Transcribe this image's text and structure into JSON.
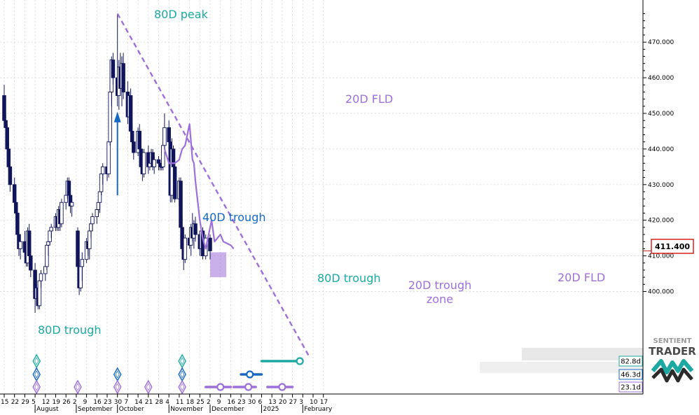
{
  "colors": {
    "candle": "#10145a",
    "teal": "#1ba9a1",
    "blue": "#1668c4",
    "purple": "#9d6fdb",
    "grid": "#cfcfcf",
    "price_box": "#d62020"
  },
  "chart_data": {
    "type": "candlestick",
    "ylim": [
      390,
      478
    ],
    "yticks": [
      400,
      410,
      420,
      430,
      440,
      450,
      460,
      470
    ],
    "ytick_labels": [
      "400.000",
      "410.000",
      "420.000",
      "430.000",
      "440.000",
      "450.000",
      "460.000",
      "470.000"
    ],
    "current_price": "411.400",
    "x_start": "2024-07-15",
    "day_labels": [
      "15",
      "22",
      "29",
      "5",
      "12",
      "19",
      "26",
      "2",
      "9",
      "16",
      "23",
      "30",
      "7",
      "14",
      "21",
      "28",
      "4",
      "11",
      "18",
      "25",
      "2",
      "9",
      "16",
      "23",
      "30",
      "6",
      "13",
      "20",
      "27",
      "3",
      "10",
      "17"
    ],
    "month_labels": [
      {
        "date": "2024-08-05",
        "text": "August"
      },
      {
        "date": "2024-09-02",
        "text": "September"
      },
      {
        "date": "2024-09-30",
        "text": "October"
      },
      {
        "date": "2024-11-04",
        "text": "November"
      },
      {
        "date": "2024-12-02",
        "text": "December"
      },
      {
        "date": "2025-01-06",
        "text": "2025"
      },
      {
        "date": "2025-02-03",
        "text": "February"
      }
    ],
    "candles": [
      [
        "2024-07-15",
        455,
        458,
        447,
        448
      ],
      [
        "2024-07-16",
        448,
        450,
        443,
        446
      ],
      [
        "2024-07-17",
        446,
        447,
        438,
        440
      ],
      [
        "2024-07-18",
        440,
        442,
        434,
        435
      ],
      [
        "2024-07-19",
        435,
        437,
        428,
        430
      ],
      [
        "2024-07-22",
        430,
        432,
        424,
        425
      ],
      [
        "2024-07-23",
        425,
        427,
        420,
        422
      ],
      [
        "2024-07-24",
        422,
        423,
        414,
        416
      ],
      [
        "2024-07-25",
        416,
        418,
        410,
        412
      ],
      [
        "2024-07-26",
        412,
        416,
        409,
        414
      ],
      [
        "2024-07-29",
        414,
        417,
        410,
        411
      ],
      [
        "2024-07-30",
        411,
        413,
        407,
        408
      ],
      [
        "2024-07-31",
        408,
        418,
        407,
        417
      ],
      [
        "2024-08-01",
        417,
        419,
        408,
        410
      ],
      [
        "2024-08-02",
        410,
        412,
        404,
        406
      ],
      [
        "2024-08-05",
        406,
        408,
        394,
        398
      ],
      [
        "2024-08-06",
        398,
        402,
        396,
        401
      ],
      [
        "2024-08-07",
        401,
        403,
        395,
        396
      ],
      [
        "2024-08-08",
        396,
        404,
        395,
        403
      ],
      [
        "2024-08-09",
        403,
        406,
        401,
        405
      ],
      [
        "2024-08-12",
        405,
        408,
        403,
        407
      ],
      [
        "2024-08-13",
        407,
        414,
        406,
        413
      ],
      [
        "2024-08-14",
        413,
        415,
        410,
        414
      ],
      [
        "2024-08-15",
        414,
        418,
        413,
        417
      ],
      [
        "2024-08-16",
        417,
        419,
        415,
        418
      ],
      [
        "2024-08-19",
        418,
        422,
        417,
        421
      ],
      [
        "2024-08-20",
        421,
        422,
        417,
        418
      ],
      [
        "2024-08-21",
        418,
        424,
        417,
        423
      ],
      [
        "2024-08-22",
        423,
        425,
        417,
        419
      ],
      [
        "2024-08-23",
        419,
        426,
        418,
        425
      ],
      [
        "2024-08-26",
        425,
        428,
        423,
        427
      ],
      [
        "2024-08-27",
        427,
        432,
        426,
        431
      ],
      [
        "2024-08-28",
        431,
        432,
        426,
        427
      ],
      [
        "2024-08-29",
        427,
        428,
        422,
        424
      ],
      [
        "2024-08-30",
        424,
        426,
        421,
        425
      ],
      [
        "2024-09-03",
        417,
        418,
        406,
        407
      ],
      [
        "2024-09-04",
        407,
        409,
        399,
        401
      ],
      [
        "2024-09-05",
        401,
        408,
        400,
        407
      ],
      [
        "2024-09-06",
        407,
        411,
        403,
        409
      ],
      [
        "2024-09-09",
        409,
        415,
        408,
        414
      ],
      [
        "2024-09-10",
        414,
        416,
        410,
        412
      ],
      [
        "2024-09-11",
        412,
        418,
        409,
        417
      ],
      [
        "2024-09-12",
        417,
        420,
        415,
        419
      ],
      [
        "2024-09-13",
        419,
        422,
        417,
        421
      ],
      [
        "2024-09-16",
        421,
        424,
        419,
        423
      ],
      [
        "2024-09-17",
        423,
        426,
        421,
        425
      ],
      [
        "2024-09-18",
        425,
        429,
        422,
        428
      ],
      [
        "2024-09-19",
        428,
        434,
        427,
        433
      ],
      [
        "2024-09-20",
        433,
        436,
        430,
        435
      ],
      [
        "2024-09-23",
        435,
        437,
        431,
        433
      ],
      [
        "2024-09-24",
        433,
        443,
        432,
        442
      ],
      [
        "2024-09-25",
        442,
        458,
        441,
        456
      ],
      [
        "2024-09-26",
        456,
        466,
        452,
        465
      ],
      [
        "2024-09-27",
        465,
        467,
        458,
        460
      ],
      [
        "2024-09-30",
        460,
        478,
        452,
        455
      ],
      [
        "2024-10-01",
        455,
        465,
        451,
        463
      ],
      [
        "2024-10-02",
        463,
        467,
        455,
        457
      ],
      [
        "2024-10-03",
        457,
        466,
        452,
        464
      ],
      [
        "2024-10-04",
        464,
        467,
        454,
        456
      ],
      [
        "2024-10-07",
        456,
        459,
        447,
        449
      ],
      [
        "2024-10-08",
        449,
        456,
        448,
        455
      ],
      [
        "2024-10-09",
        455,
        457,
        443,
        445
      ],
      [
        "2024-10-10",
        445,
        447,
        441,
        442
      ],
      [
        "2024-10-11",
        442,
        444,
        437,
        439
      ],
      [
        "2024-10-14",
        439,
        446,
        438,
        445
      ],
      [
        "2024-10-15",
        445,
        447,
        438,
        440
      ],
      [
        "2024-10-16",
        440,
        441,
        433,
        435
      ],
      [
        "2024-10-17",
        435,
        436,
        431,
        433
      ],
      [
        "2024-10-18",
        433,
        440,
        432,
        439
      ],
      [
        "2024-10-21",
        439,
        441,
        433,
        435
      ],
      [
        "2024-10-22",
        435,
        437,
        434,
        436
      ],
      [
        "2024-10-23",
        436,
        440,
        435,
        439
      ],
      [
        "2024-10-24",
        439,
        440,
        434,
        435
      ],
      [
        "2024-10-25",
        435,
        438,
        433,
        437
      ],
      [
        "2024-10-28",
        437,
        438,
        434,
        436
      ],
      [
        "2024-10-29",
        436,
        437,
        434,
        435
      ],
      [
        "2024-10-30",
        435,
        436,
        434,
        435
      ],
      [
        "2024-10-31",
        435,
        442,
        434,
        441
      ],
      [
        "2024-11-01",
        441,
        450,
        440,
        446
      ],
      [
        "2024-11-04",
        446,
        448,
        440,
        442
      ],
      [
        "2024-11-05",
        442,
        443,
        425,
        427
      ],
      [
        "2024-11-06",
        427,
        443,
        425,
        440
      ],
      [
        "2024-11-07",
        440,
        441,
        434,
        435
      ],
      [
        "2024-11-08",
        435,
        436,
        425,
        426
      ],
      [
        "2024-11-11",
        426,
        432,
        424,
        431
      ],
      [
        "2024-11-12",
        431,
        432,
        417,
        418
      ],
      [
        "2024-11-13",
        418,
        421,
        410,
        412
      ],
      [
        "2024-11-14",
        412,
        414,
        406,
        409
      ],
      [
        "2024-11-15",
        409,
        416,
        408,
        415
      ],
      [
        "2024-11-18",
        415,
        417,
        412,
        413
      ],
      [
        "2024-11-19",
        413,
        419,
        410,
        418
      ],
      [
        "2024-11-20",
        418,
        422,
        414,
        415
      ],
      [
        "2024-11-21",
        415,
        420,
        412,
        419
      ],
      [
        "2024-11-22",
        419,
        421,
        414,
        416
      ],
      [
        "2024-11-25",
        416,
        417,
        410,
        412
      ],
      [
        "2024-11-26",
        412,
        418,
        411,
        417
      ],
      [
        "2024-11-27",
        417,
        418,
        409,
        410
      ],
      [
        "2024-11-29",
        410,
        416,
        409,
        415
      ],
      [
        "2024-12-02",
        415,
        416,
        409,
        411.4
      ]
    ],
    "series": [
      {
        "name": "20D FLD",
        "color": "#9d6fdb",
        "points": [
          [
            "2024-11-01",
            440
          ],
          [
            "2024-11-04",
            436
          ],
          [
            "2024-11-08",
            436
          ],
          [
            "2024-11-11",
            437
          ],
          [
            "2024-11-13",
            440
          ],
          [
            "2024-11-15",
            441
          ],
          [
            "2024-11-18",
            447
          ],
          [
            "2024-11-20",
            437
          ],
          [
            "2024-11-21",
            436
          ],
          [
            "2024-11-22",
            431
          ],
          [
            "2024-11-25",
            420
          ],
          [
            "2024-11-27",
            415
          ],
          [
            "2024-11-29",
            412
          ],
          [
            "2024-12-02",
            418
          ],
          [
            "2024-12-03",
            420
          ],
          [
            "2024-12-05",
            414
          ],
          [
            "2024-12-09",
            416
          ],
          [
            "2024-12-11",
            414
          ],
          [
            "2024-12-16",
            413
          ],
          [
            "2024-12-18",
            412
          ]
        ]
      }
    ],
    "trendline": {
      "from": [
        "2024-09-30",
        478
      ],
      "to": [
        "2025-02-07",
        382
      ]
    },
    "trough_zone": {
      "from": "2024-12-02",
      "to": "2024-12-13",
      "ymin": 404,
      "ymax": 411
    },
    "labels": {
      "peak80": "80D peak",
      "trough80_aug": "80D trough",
      "trough40": "40D trough",
      "fld20_top": "20D FLD",
      "trough80_nov": "80D trough",
      "zone_l1": "20D trough",
      "zone_l2": "zone",
      "fld20_right": "20D FLD"
    },
    "cycle_markers": [
      {
        "date": "2024-08-06",
        "types": [
          "teal",
          "blue",
          "purple"
        ]
      },
      {
        "date": "2024-09-03",
        "types": [
          "purple"
        ]
      },
      {
        "date": "2024-09-30",
        "types": [
          "blue",
          "purple"
        ]
      },
      {
        "date": "2024-10-21",
        "types": [
          "purple"
        ]
      },
      {
        "date": "2024-11-13",
        "types": [
          "teal",
          "blue",
          "purple"
        ]
      }
    ],
    "projections": [
      {
        "type": "teal",
        "label": "82.8d",
        "from": "2025-01-06",
        "to": "2025-02-01",
        "center": "2025-02-01"
      },
      {
        "type": "blue",
        "label": "46.3d",
        "from": "2024-12-23",
        "to": "2025-01-06",
        "center": "2024-12-29"
      },
      {
        "type": "purple",
        "label": "23.1d",
        "from": "2024-11-29",
        "to": "2024-12-16",
        "center": "2024-12-09"
      },
      {
        "type": "purple",
        "label": "",
        "from": "2024-12-18",
        "to": "2025-01-02",
        "center": "2024-12-28"
      },
      {
        "type": "purple",
        "label": "",
        "from": "2025-01-10",
        "to": "2025-01-27",
        "center": "2025-01-20"
      }
    ]
  },
  "logo": {
    "line1": "SENTIENT",
    "line2": "TRADER"
  }
}
